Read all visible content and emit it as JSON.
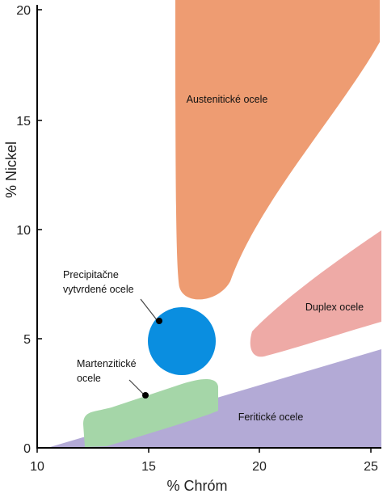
{
  "axes": {
    "x": {
      "title": "% Chróm",
      "ticks": [
        "10",
        "15",
        "20",
        "25"
      ]
    },
    "y": {
      "title": "% Nickel",
      "ticks": [
        "0",
        "5",
        "10",
        "15",
        "20"
      ]
    }
  },
  "regions": {
    "austenitic": {
      "label": "Austenitické ocele",
      "color": "#ee9c72"
    },
    "duplex": {
      "label": "Duplex ocele",
      "color": "#eeaaa6"
    },
    "ferritic": {
      "label": "Feritické ocele",
      "color": "#b3aad6"
    },
    "martensitic": {
      "label_line1": "Martenzitické",
      "label_line2": "ocele",
      "color": "#a5d6a8"
    },
    "precipitation": {
      "label_line1": "Precipitačne",
      "label_line2": "vytvrdené ocele",
      "color": "#0a8ee0"
    }
  },
  "colors": {
    "axis": "#000000",
    "marker": "#000000"
  }
}
